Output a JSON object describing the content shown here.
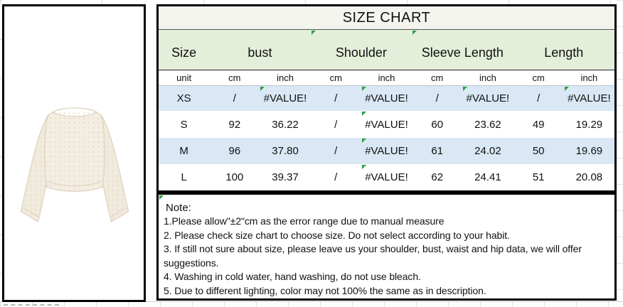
{
  "colors": {
    "border-black": "#000000",
    "title-bg": "#f4f4ef",
    "green-row": "#e4efda",
    "blue-row": "#d9e8f4",
    "err-green": "#2f9e44",
    "text": "#111111"
  },
  "product_image": {
    "alt": "cream crochet knit long-sleeve sweater on white background"
  },
  "size_chart": {
    "title": "SIZE CHART",
    "group_headers": [
      {
        "label": "Size",
        "span": 1,
        "error_marker": false
      },
      {
        "label": "bust",
        "span": 2,
        "error_marker": false
      },
      {
        "label": "Shoulder",
        "span": 2,
        "error_marker": true
      },
      {
        "label": "Sleeve Length",
        "span": 2,
        "error_marker": true
      },
      {
        "label": "Length",
        "span": 2,
        "error_marker": false
      }
    ],
    "unit_row": [
      "unit",
      "cm",
      "inch",
      "cm",
      "inch",
      "cm",
      "inch",
      "cm",
      "inch"
    ],
    "rows": [
      {
        "size": "XS",
        "cells": [
          {
            "v": "/",
            "err": false
          },
          {
            "v": "#VALUE!",
            "err": true
          },
          {
            "v": "/",
            "err": false
          },
          {
            "v": "#VALUE!",
            "err": true
          },
          {
            "v": "/",
            "err": false
          },
          {
            "v": "#VALUE!",
            "err": true
          },
          {
            "v": "/",
            "err": false
          },
          {
            "v": "#VALUE!",
            "err": true
          }
        ]
      },
      {
        "size": "S",
        "cells": [
          {
            "v": "92",
            "err": false
          },
          {
            "v": "36.22",
            "err": false
          },
          {
            "v": "/",
            "err": false
          },
          {
            "v": "#VALUE!",
            "err": true
          },
          {
            "v": "60",
            "err": false
          },
          {
            "v": "23.62",
            "err": false
          },
          {
            "v": "49",
            "err": false
          },
          {
            "v": "19.29",
            "err": false
          }
        ]
      },
      {
        "size": "M",
        "cells": [
          {
            "v": "96",
            "err": false
          },
          {
            "v": "37.80",
            "err": false
          },
          {
            "v": "/",
            "err": false
          },
          {
            "v": "#VALUE!",
            "err": true
          },
          {
            "v": "61",
            "err": false
          },
          {
            "v": "24.02",
            "err": false
          },
          {
            "v": "50",
            "err": false
          },
          {
            "v": "19.69",
            "err": false
          }
        ]
      },
      {
        "size": "L",
        "cells": [
          {
            "v": "100",
            "err": false
          },
          {
            "v": "39.37",
            "err": false
          },
          {
            "v": "/",
            "err": false
          },
          {
            "v": "#VALUE!",
            "err": true
          },
          {
            "v": "62",
            "err": false
          },
          {
            "v": "24.41",
            "err": false
          },
          {
            "v": "51",
            "err": false
          },
          {
            "v": "20.08",
            "err": false
          }
        ]
      }
    ]
  },
  "note": {
    "title": "Note:",
    "lines": [
      "1.Please allow\"±2\"cm as the error range due to manual measure",
      "2. Please check size chart to choose size. Do not select according to your habit.",
      "3. If still not sure about size, please leave us your shoulder, bust, waist and hip data, we will offer",
      "suggestions.",
      "4. Washing in cold water, hand washing, do not use bleach.",
      "5. Due to different lighting, color may not 100% the same as in description."
    ]
  }
}
